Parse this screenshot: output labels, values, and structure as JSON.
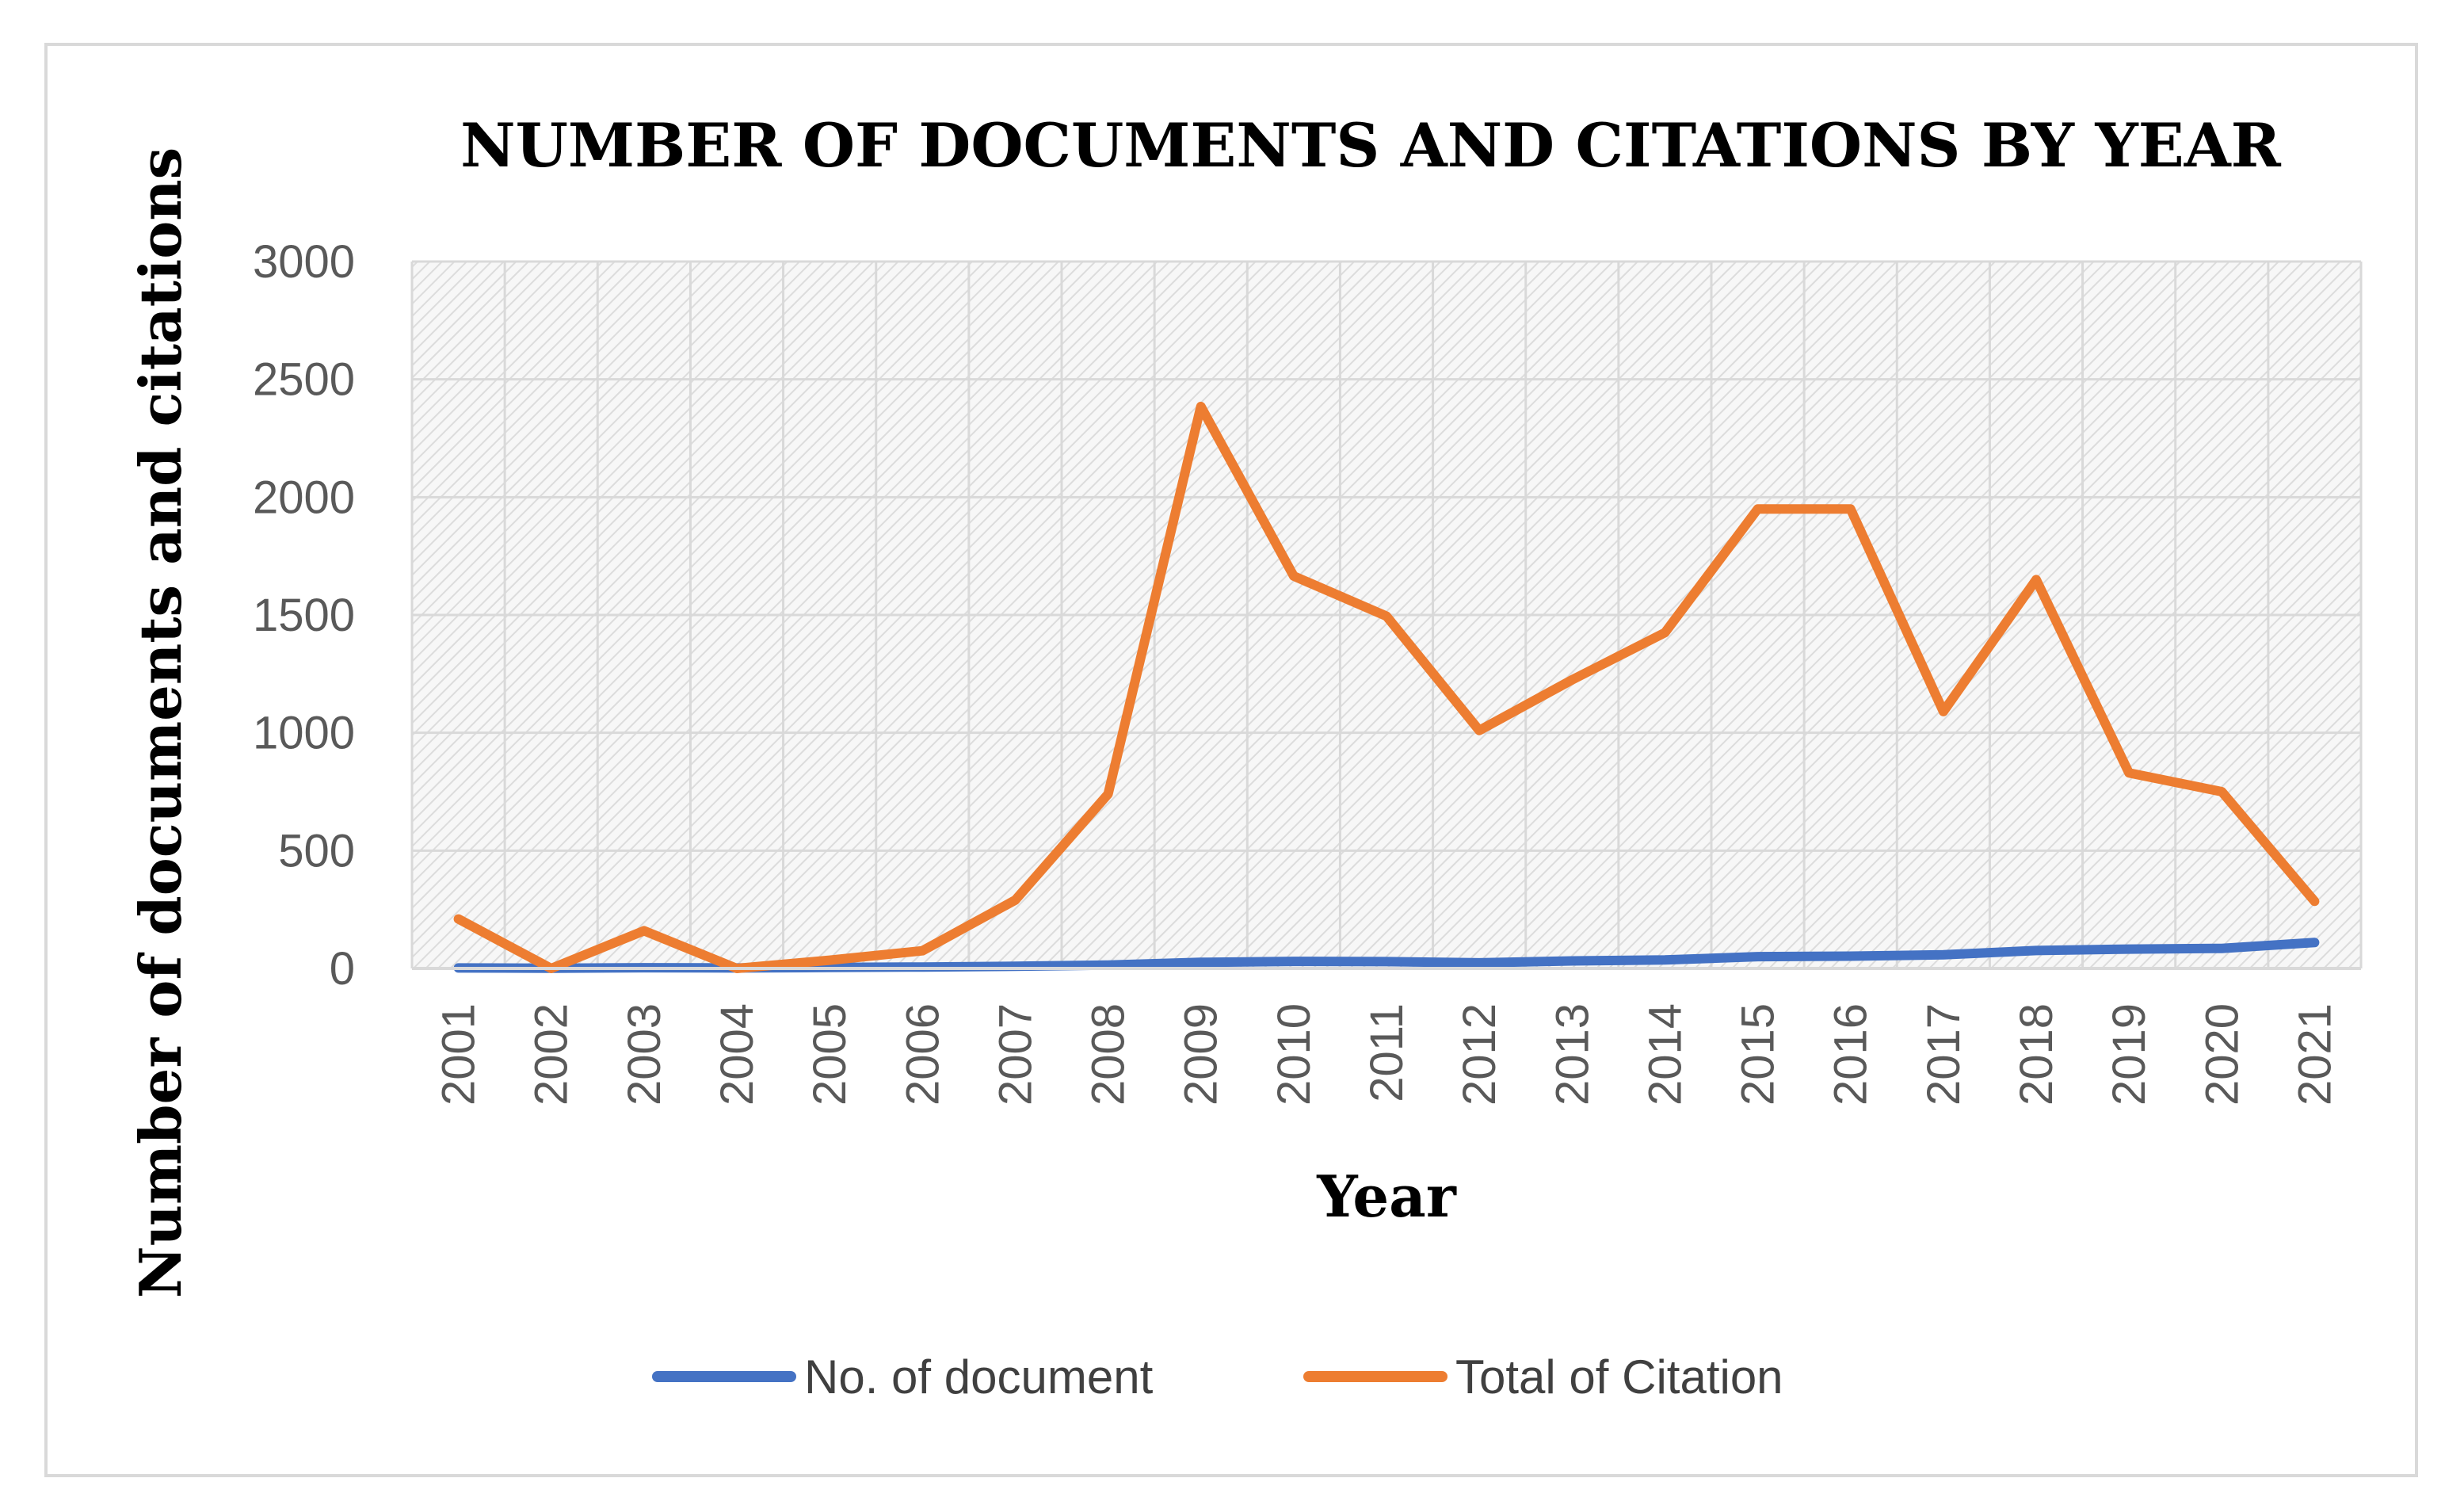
{
  "chart_data": {
    "type": "line",
    "title": "NUMBER OF DOCUMENTS AND CITATIONS BY YEAR",
    "xlabel": "Year",
    "ylabel": "Number of documents and citations",
    "x": [
      "2001",
      "2002",
      "2003",
      "2004",
      "2005",
      "2006",
      "2007",
      "2008",
      "2009",
      "2010",
      "2011",
      "2012",
      "2013",
      "2014",
      "2015",
      "2016",
      "2017",
      "2018",
      "2019",
      "2020",
      "2021"
    ],
    "ylim": [
      0,
      3000
    ],
    "yticks": [
      "0",
      "500",
      "1000",
      "1500",
      "2000",
      "2500",
      "3000"
    ],
    "grid": true,
    "legend_position": "bottom",
    "series": [
      {
        "name": "No. of document",
        "color": "#4472C4",
        "values": [
          2,
          1,
          3,
          2,
          4,
          6,
          9,
          14,
          26,
          30,
          29,
          24,
          32,
          36,
          50,
          52,
          58,
          76,
          82,
          85,
          110
        ]
      },
      {
        "name": "Total of Citation",
        "color": "#ED7D31",
        "values": [
          210,
          0,
          160,
          0,
          35,
          75,
          290,
          740,
          2385,
          1665,
          1495,
          1010,
          1225,
          1425,
          1950,
          1950,
          1090,
          1650,
          830,
          750,
          285
        ]
      }
    ]
  }
}
